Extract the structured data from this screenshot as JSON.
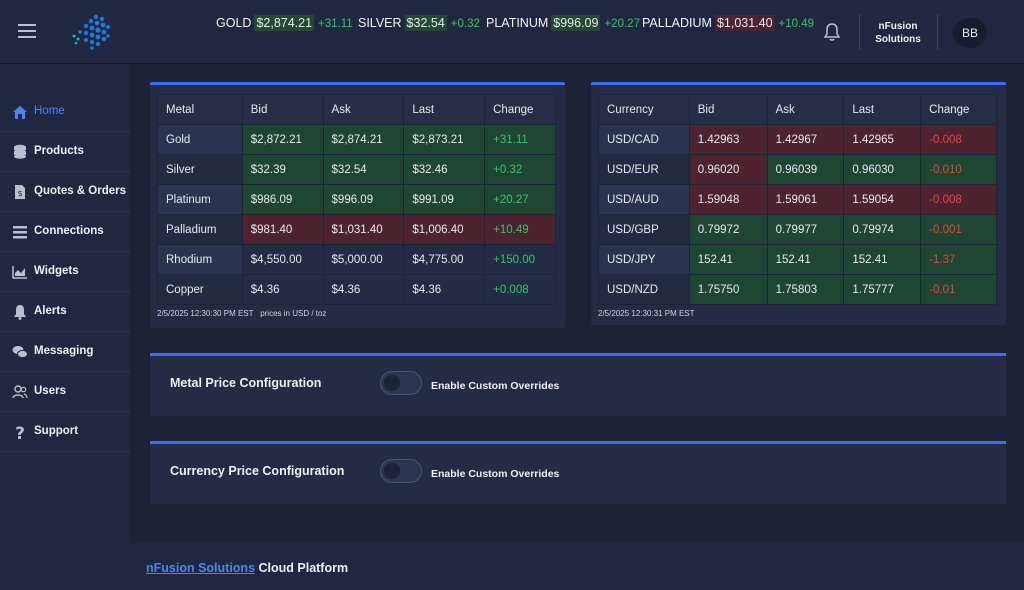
{
  "ticker": [
    {
      "name": "GOLD",
      "price": "$2,874.21",
      "change": "+31.11",
      "tone": "up"
    },
    {
      "name": "SILVER",
      "price": "$32.54",
      "change": "+0.32",
      "tone": "up"
    },
    {
      "name": "PLATINUM",
      "price": "$996.09",
      "change": "+20.27",
      "tone": "up"
    },
    {
      "name": "PALLADIUM",
      "price": "$1,031.40",
      "change": "+10.49",
      "tone": "down"
    }
  ],
  "header": {
    "company_line1": "nFusion",
    "company_line2": "Solutions",
    "avatar": "BB"
  },
  "sidebar": {
    "items": [
      {
        "label": "Home",
        "icon": "home-icon"
      },
      {
        "label": "Products",
        "icon": "coins-icon"
      },
      {
        "label": "Quotes & Orders",
        "icon": "invoice-icon"
      },
      {
        "label": "Connections",
        "icon": "list-icon"
      },
      {
        "label": "Widgets",
        "icon": "chart-icon"
      },
      {
        "label": "Alerts",
        "icon": "bell-icon"
      },
      {
        "label": "Messaging",
        "icon": "chat-icon"
      },
      {
        "label": "Users",
        "icon": "users-icon"
      },
      {
        "label": "Support",
        "icon": "question-icon"
      }
    ]
  },
  "metals": {
    "headers": [
      "Metal",
      "Bid",
      "Ask",
      "Last",
      "Change"
    ],
    "rows": [
      {
        "cells": [
          "Gold",
          "$2,872.21",
          "$2,874.21",
          "$2,873.21",
          "+31.11"
        ],
        "tone": "g"
      },
      {
        "cells": [
          "Silver",
          "$32.39",
          "$32.54",
          "$32.46",
          "+0.32"
        ],
        "tone": "g"
      },
      {
        "cells": [
          "Platinum",
          "$986.09",
          "$996.09",
          "$991.09",
          "+20.27"
        ],
        "tone": "g"
      },
      {
        "cells": [
          "Palladium",
          "$981.40",
          "$1,031.40",
          "$1,006.40",
          "+10.49"
        ],
        "tone": "r"
      },
      {
        "cells": [
          "Rhodium",
          "$4,550.00",
          "$5,000.00",
          "$4,775.00",
          "+150.00"
        ],
        "tone": "n"
      },
      {
        "cells": [
          "Copper",
          "$4.36",
          "$4.36",
          "$4.36",
          "+0.008"
        ],
        "tone": "n"
      }
    ],
    "timestamp": "2/5/2025 12:30:30 PM EST",
    "unit_note": "prices in USD / toz"
  },
  "currencies": {
    "headers": [
      "Currency",
      "Bid",
      "Ask",
      "Last",
      "Change"
    ],
    "rows": [
      {
        "cells": [
          "USD/CAD",
          "1.42963",
          "1.42967",
          "1.42965",
          "-0.008"
        ],
        "tones": [
          "r",
          "r",
          "r",
          "r"
        ]
      },
      {
        "cells": [
          "USD/EUR",
          "0.96020",
          "0.96039",
          "0.96030",
          "-0.010"
        ],
        "tones": [
          "r",
          "g",
          "g",
          "g"
        ]
      },
      {
        "cells": [
          "USD/AUD",
          "1.59048",
          "1.59061",
          "1.59054",
          "-0.008"
        ],
        "tones": [
          "r",
          "r",
          "r",
          "r"
        ]
      },
      {
        "cells": [
          "USD/GBP",
          "0.79972",
          "0.79977",
          "0.79974",
          "-0.001"
        ],
        "tones": [
          "g",
          "g",
          "g",
          "g"
        ]
      },
      {
        "cells": [
          "USD/JPY",
          "152.41",
          "152.41",
          "152.41",
          "-1.37"
        ],
        "tones": [
          "g",
          "g",
          "g",
          "g"
        ]
      },
      {
        "cells": [
          "USD/NZD",
          "1.75750",
          "1.75803",
          "1.75777",
          "-0.01"
        ],
        "tones": [
          "g",
          "g",
          "g",
          "g"
        ]
      }
    ],
    "timestamp": "2/5/2025 12:30:31 PM EST"
  },
  "config": {
    "metal_title": "Metal Price Configuration",
    "currency_title": "Currency Price Configuration",
    "toggle_label": "Enable Custom Overrides"
  },
  "footer": {
    "brand_link": "nFusion Solutions",
    "brand_rest": "Cloud Platform"
  },
  "colors": {
    "accent": "#3b6ff2",
    "up": "#36c46a",
    "down": "#e0483e",
    "ticker_up_bg": "#234a30",
    "ticker_down_bg": "#4e2330"
  }
}
